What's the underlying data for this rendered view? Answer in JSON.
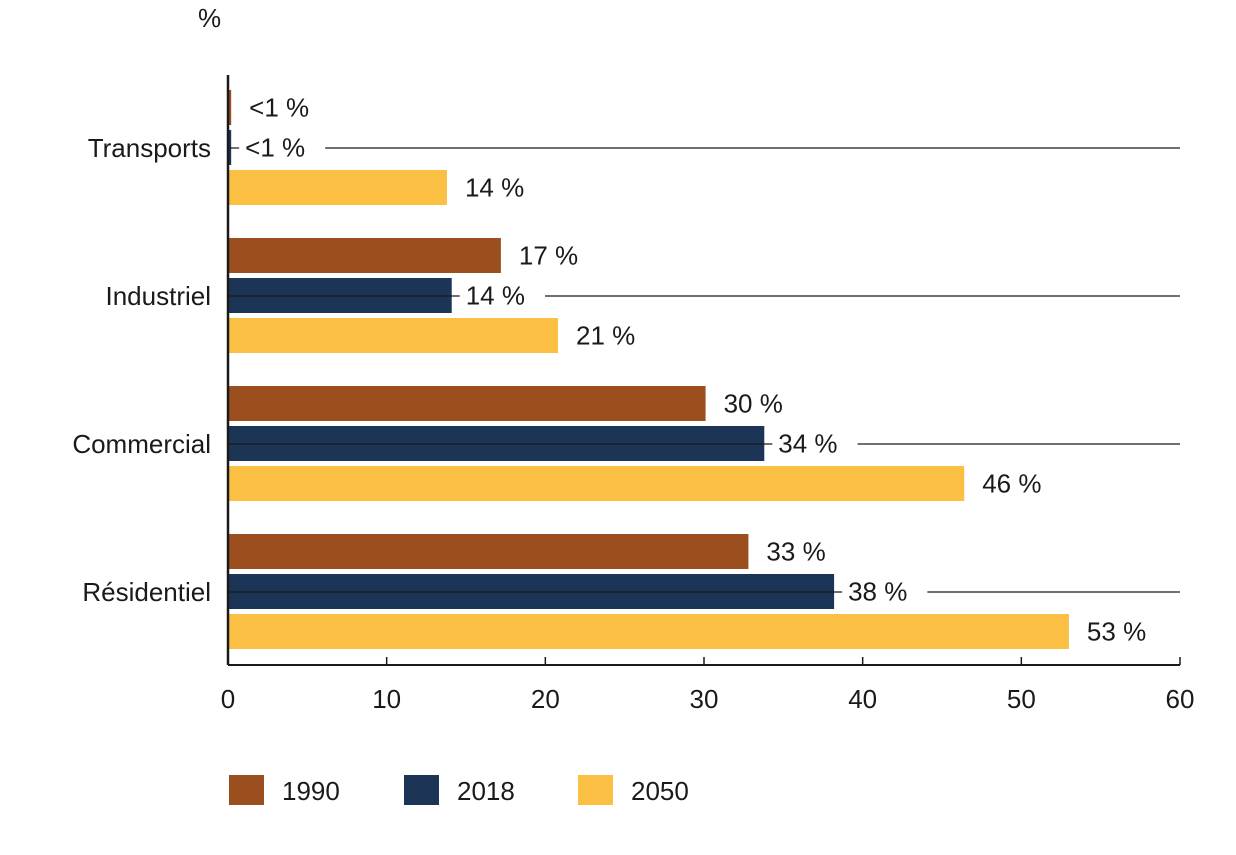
{
  "chart_data": {
    "type": "bar",
    "orientation": "horizontal",
    "unit_label": "%",
    "categories": [
      "Transports",
      "Industriel",
      "Commercial",
      "Résidentiel"
    ],
    "series": [
      {
        "name": "1990",
        "color": "#9c4f1e",
        "values": [
          0.2,
          17.2,
          30.1,
          32.8
        ],
        "labels": [
          "<1 %",
          "17 %",
          "30 %",
          "33 %"
        ]
      },
      {
        "name": "2018",
        "color": "#1c3557",
        "values": [
          0.2,
          14.1,
          33.8,
          38.2
        ],
        "labels": [
          "<1 %",
          "14 %",
          "34 %",
          "38 %"
        ]
      },
      {
        "name": "2050",
        "color": "#fbbf44",
        "values": [
          13.8,
          20.8,
          46.4,
          53.0
        ],
        "labels": [
          "14 %",
          "21 %",
          "46 %",
          "53 %"
        ]
      }
    ],
    "xlim": [
      0,
      60
    ],
    "xticks": [
      "0",
      "10",
      "20",
      "30",
      "40",
      "50",
      "60"
    ],
    "legend_position": "bottom-left",
    "grid": false
  }
}
